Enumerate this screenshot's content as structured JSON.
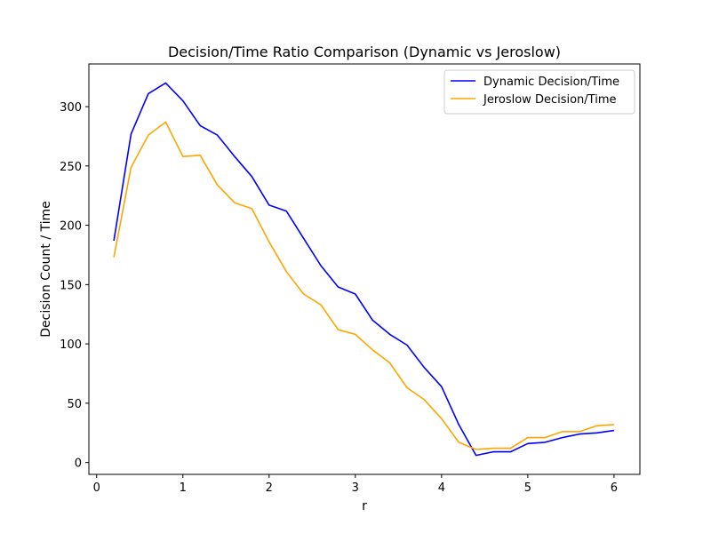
{
  "chart_data": {
    "type": "line",
    "title": "Decision/Time Ratio Comparison (Dynamic vs Jeroslow)",
    "xlabel": "r",
    "ylabel": "Decision Count / Time",
    "xlim": [
      -0.09,
      6.3
    ],
    "ylim": [
      -10,
      336
    ],
    "xticks": [
      0,
      1,
      2,
      3,
      4,
      5,
      6
    ],
    "yticks": [
      0,
      50,
      100,
      150,
      200,
      250,
      300
    ],
    "grid": false,
    "legend_position": "top-right",
    "x": [
      0.2,
      0.4,
      0.6,
      0.8,
      1.0,
      1.2,
      1.4,
      1.6,
      1.8,
      2.0,
      2.2,
      2.4,
      2.6,
      2.8,
      3.0,
      3.2,
      3.4,
      3.6,
      3.8,
      4.0,
      4.2,
      4.4,
      4.6,
      4.8,
      5.0,
      5.2,
      5.4,
      5.6,
      5.8,
      6.0
    ],
    "series": [
      {
        "name": "Dynamic Decision/Time",
        "color": "#0000ff",
        "values": [
          187,
          277,
          311,
          320,
          305,
          284,
          276,
          258,
          241,
          217,
          212,
          189,
          166,
          148,
          142,
          120,
          108,
          99,
          80,
          64,
          32,
          6,
          9,
          9,
          16,
          17,
          21,
          24,
          25,
          27
        ]
      },
      {
        "name": "Jeroslow Decision/Time",
        "color": "#ffa500",
        "values": [
          173,
          249,
          276,
          287,
          258,
          259,
          234,
          219,
          214,
          186,
          161,
          142,
          133,
          112,
          108,
          95,
          84,
          63,
          53,
          37,
          17,
          11,
          12,
          12,
          21,
          21,
          26,
          26,
          31,
          32
        ]
      }
    ]
  }
}
